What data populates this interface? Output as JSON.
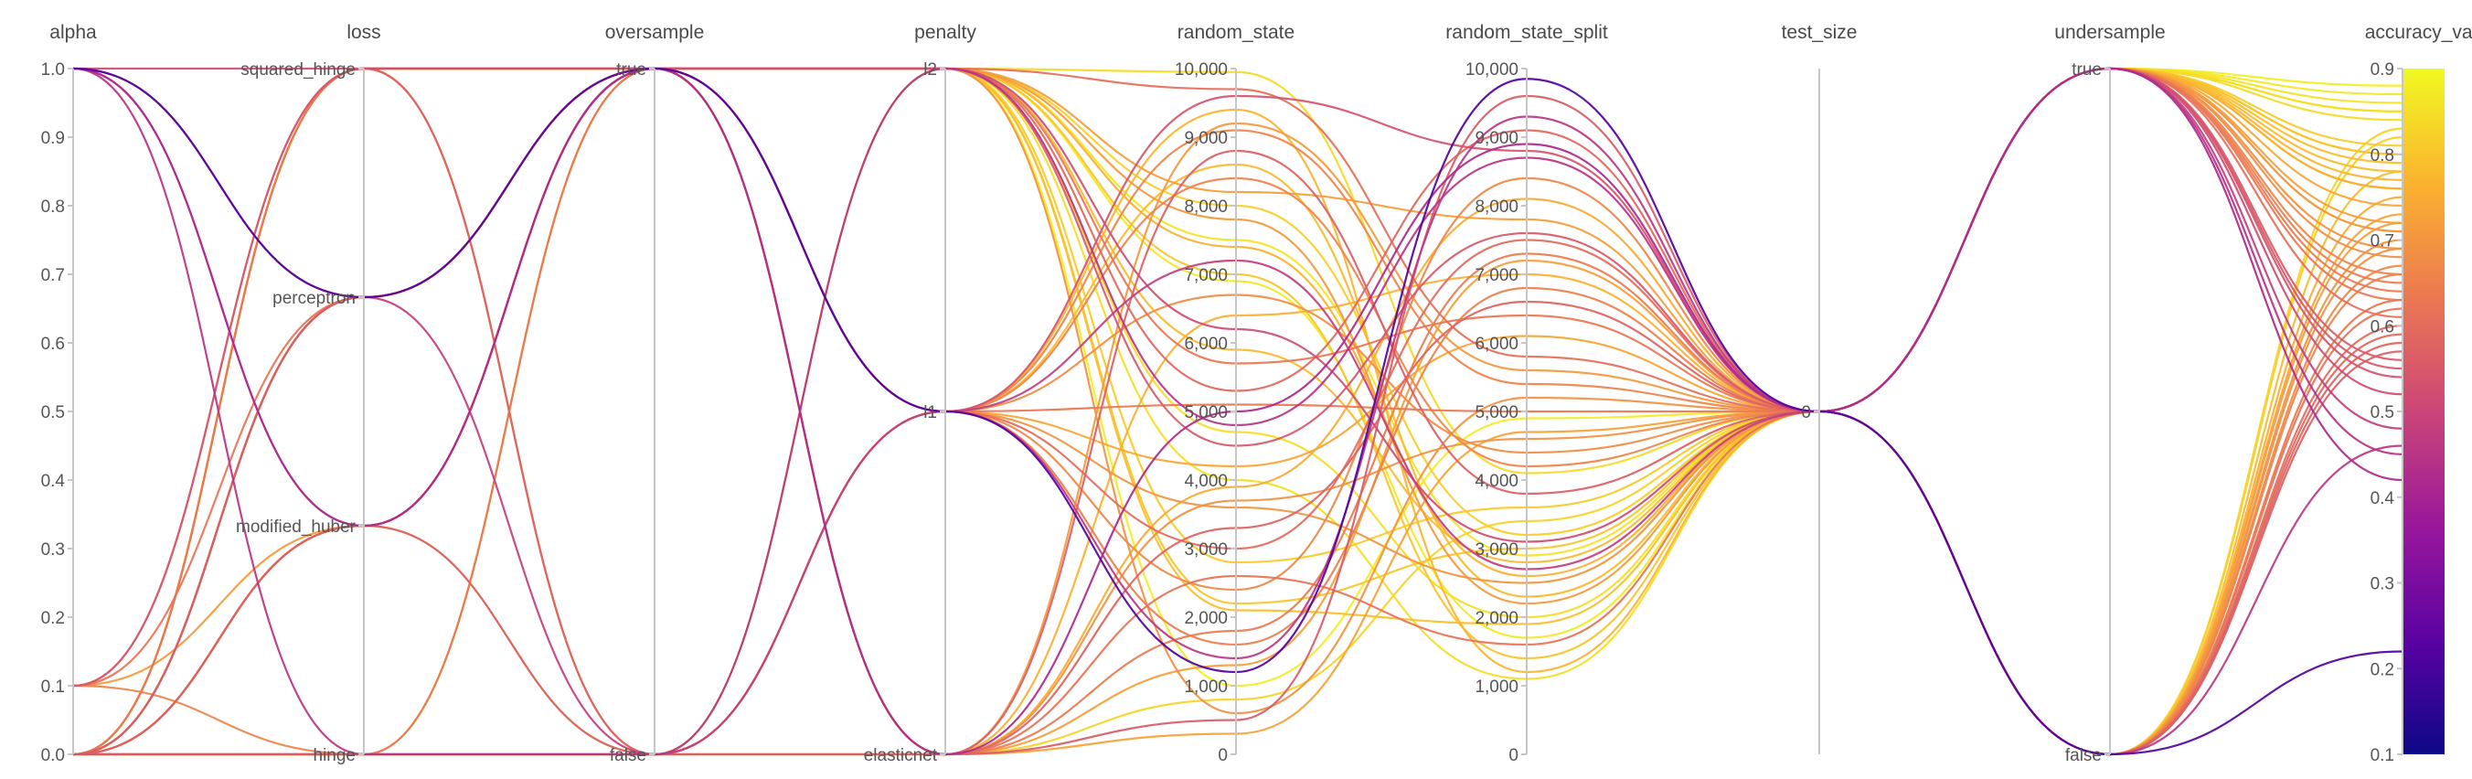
{
  "chart_data": {
    "type": "parallel_coordinates",
    "colorscale": {
      "name": "plasma",
      "stops": [
        "#0d0887",
        "#5b02a3",
        "#9a179b",
        "#cb4678",
        "#eb7852",
        "#fbb32f",
        "#f0f921"
      ],
      "range": [
        0.1,
        0.9
      ],
      "colorbar_ticks": [
        "0.1",
        "0.2",
        "0.3",
        "0.4",
        "0.5",
        "0.6",
        "0.7",
        "0.8",
        "0.9"
      ]
    },
    "axes": [
      {
        "key": "alpha",
        "label": "alpha",
        "type": "linear",
        "range": [
          0,
          1
        ],
        "ticks": [
          "0.0",
          "0.1",
          "0.2",
          "0.3",
          "0.4",
          "0.5",
          "0.6",
          "0.7",
          "0.8",
          "0.9",
          "1.0"
        ],
        "tick_side": "left"
      },
      {
        "key": "loss",
        "label": "loss",
        "type": "categorical",
        "categories": [
          "hinge",
          "modified_huber",
          "perceptron",
          "squared_hinge"
        ],
        "tick_side": "left"
      },
      {
        "key": "oversample",
        "label": "oversample",
        "type": "categorical",
        "categories": [
          "false",
          "true"
        ],
        "tick_side": "left"
      },
      {
        "key": "penalty",
        "label": "penalty",
        "type": "categorical",
        "categories": [
          "elasticnet",
          "l1",
          "l2"
        ],
        "tick_side": "left"
      },
      {
        "key": "random_state",
        "label": "random_state",
        "type": "linear",
        "range": [
          0,
          10000
        ],
        "ticks": [
          "0",
          "1,000",
          "2,000",
          "3,000",
          "4,000",
          "5,000",
          "6,000",
          "7,000",
          "8,000",
          "9,000",
          "10,000"
        ],
        "tick_side": "left"
      },
      {
        "key": "random_state_split",
        "label": "random_state_split",
        "type": "linear",
        "range": [
          0,
          10000
        ],
        "ticks": [
          "0",
          "1,000",
          "2,000",
          "3,000",
          "4,000",
          "5,000",
          "6,000",
          "7,000",
          "8,000",
          "9,000",
          "10,000"
        ],
        "tick_side": "left"
      },
      {
        "key": "test_size",
        "label": "test_size",
        "type": "categorical",
        "categories": [
          "0"
        ],
        "tick_side": "left"
      },
      {
        "key": "undersample",
        "label": "undersample",
        "type": "categorical",
        "categories": [
          "false",
          "true"
        ],
        "tick_side": "left"
      },
      {
        "key": "accuracy_val",
        "label": "accuracy_val",
        "type": "linear",
        "range": [
          0.1,
          0.9
        ],
        "ticks": [
          "0.1",
          "0.2",
          "0.3",
          "0.4",
          "0.5",
          "0.6",
          "0.7",
          "0.8",
          "0.9"
        ],
        "tick_side": "left",
        "colorbar": true
      }
    ],
    "runs": [
      {
        "alpha": 1.0,
        "loss": "perceptron",
        "oversample": "true",
        "penalty": "l1",
        "random_state": 1200,
        "random_state_split": 9850,
        "test_size": "0",
        "undersample": "false",
        "accuracy_val": 0.22
      },
      {
        "alpha": 1.0,
        "loss": "modified_huber",
        "oversample": "true",
        "penalty": "elasticnet",
        "random_state": 5000,
        "random_state_split": 8900,
        "test_size": "0",
        "undersample": "true",
        "accuracy_val": 0.42
      },
      {
        "alpha": 1.0,
        "loss": "hinge",
        "oversample": "false",
        "penalty": "l2",
        "random_state": 4800,
        "random_state_split": 8700,
        "test_size": "0",
        "undersample": "true",
        "accuracy_val": 0.45
      },
      {
        "alpha": 1.0,
        "loss": "squared_hinge",
        "oversample": "true",
        "penalty": "l2",
        "random_state": 6200,
        "random_state_split": 3100,
        "test_size": "0",
        "undersample": "true",
        "accuracy_val": 0.52
      },
      {
        "alpha": 1.0,
        "loss": "perceptron",
        "oversample": "false",
        "penalty": "l1",
        "random_state": 7200,
        "random_state_split": 2700,
        "test_size": "0",
        "undersample": "true",
        "accuracy_val": 0.48
      },
      {
        "alpha": 1.0,
        "loss": "modified_huber",
        "oversample": "true",
        "penalty": "l1",
        "random_state": 1400,
        "random_state_split": 9300,
        "test_size": "0",
        "undersample": "false",
        "accuracy_val": 0.46
      },
      {
        "alpha": 0.1,
        "loss": "squared_hinge",
        "oversample": "true",
        "penalty": "l2",
        "random_state": 4500,
        "random_state_split": 7600,
        "test_size": "0",
        "undersample": "true",
        "accuracy_val": 0.55
      },
      {
        "alpha": 0.1,
        "loss": "perceptron",
        "oversample": "true",
        "penalty": "elasticnet",
        "random_state": 2600,
        "random_state_split": 1600,
        "test_size": "0",
        "undersample": "false",
        "accuracy_val": 0.62
      },
      {
        "alpha": 0.1,
        "loss": "hinge",
        "oversample": "false",
        "penalty": "l1",
        "random_state": 9100,
        "random_state_split": 5400,
        "test_size": "0",
        "undersample": "true",
        "accuracy_val": 0.66
      },
      {
        "alpha": 0.1,
        "loss": "modified_huber",
        "oversample": "true",
        "penalty": "l2",
        "random_state": 7800,
        "random_state_split": 2200,
        "test_size": "0",
        "undersample": "true",
        "accuracy_val": 0.71
      },
      {
        "alpha": 0.1,
        "loss": "squared_hinge",
        "oversample": "false",
        "penalty": "elasticnet",
        "random_state": 3300,
        "random_state_split": 6600,
        "test_size": "0",
        "undersample": "false",
        "accuracy_val": 0.58
      },
      {
        "alpha": 0.0,
        "loss": "squared_hinge",
        "oversample": "true",
        "penalty": "l2",
        "random_state": 9950,
        "random_state_split": 4100,
        "test_size": "0",
        "undersample": "true",
        "accuracy_val": 0.84
      },
      {
        "alpha": 0.0,
        "loss": "squared_hinge",
        "oversample": "true",
        "penalty": "l1",
        "random_state": 8600,
        "random_state_split": 2300,
        "test_size": "0",
        "undersample": "false",
        "accuracy_val": 0.78
      },
      {
        "alpha": 0.0,
        "loss": "perceptron",
        "oversample": "true",
        "penalty": "l2",
        "random_state": 600,
        "random_state_split": 5200,
        "test_size": "0",
        "undersample": "true",
        "accuracy_val": 0.69
      },
      {
        "alpha": 0.0,
        "loss": "perceptron",
        "oversample": "true",
        "penalty": "elasticnet",
        "random_state": 3900,
        "random_state_split": 8100,
        "test_size": "0",
        "undersample": "false",
        "accuracy_val": 0.75
      },
      {
        "alpha": 0.0,
        "loss": "modified_huber",
        "oversample": "true",
        "penalty": "l2",
        "random_state": 2800,
        "random_state_split": 3600,
        "test_size": "0",
        "undersample": "true",
        "accuracy_val": 0.81
      },
      {
        "alpha": 0.0,
        "loss": "modified_huber",
        "oversample": "false",
        "penalty": "l1",
        "random_state": 9400,
        "random_state_split": 1200,
        "test_size": "0",
        "undersample": "true",
        "accuracy_val": 0.77
      },
      {
        "alpha": 0.0,
        "loss": "hinge",
        "oversample": "false",
        "penalty": "elasticnet",
        "random_state": 300,
        "random_state_split": 4700,
        "test_size": "0",
        "undersample": "false",
        "accuracy_val": 0.73
      },
      {
        "alpha": 0.0,
        "loss": "hinge",
        "oversample": "false",
        "penalty": "l2",
        "random_state": 7500,
        "random_state_split": 2900,
        "test_size": "0",
        "undersample": "true",
        "accuracy_val": 0.86
      },
      {
        "alpha": 0.0,
        "loss": "squared_hinge",
        "oversample": "true",
        "penalty": "elasticnet",
        "random_state": 1800,
        "random_state_split": 7300,
        "test_size": "0",
        "undersample": "true",
        "accuracy_val": 0.64
      },
      {
        "alpha": 0.0,
        "loss": "perceptron",
        "oversample": "true",
        "penalty": "l2",
        "random_state": 5300,
        "random_state_split": 9100,
        "test_size": "0",
        "undersample": "false",
        "accuracy_val": 0.59
      },
      {
        "alpha": 0.0,
        "loss": "modified_huber",
        "oversample": "true",
        "penalty": "l1",
        "random_state": 6700,
        "random_state_split": 4400,
        "test_size": "0",
        "undersample": "true",
        "accuracy_val": 0.68
      },
      {
        "alpha": 0.0,
        "loss": "squared_hinge",
        "oversample": "false",
        "penalty": "l2",
        "random_state": 8200,
        "random_state_split": 7800,
        "test_size": "0",
        "undersample": "false",
        "accuracy_val": 0.72
      },
      {
        "alpha": 0.0,
        "loss": "hinge",
        "oversample": "true",
        "penalty": "l2",
        "random_state": 2100,
        "random_state_split": 1900,
        "test_size": "0",
        "undersample": "true",
        "accuracy_val": 0.79
      },
      {
        "alpha": 0.0,
        "loss": "perceptron",
        "oversample": "true",
        "penalty": "l1",
        "random_state": 4200,
        "random_state_split": 6100,
        "test_size": "0",
        "undersample": "true",
        "accuracy_val": 0.74
      },
      {
        "alpha": 0.0,
        "loss": "squared_hinge",
        "oversample": "true",
        "penalty": "elasticnet",
        "random_state": 800,
        "random_state_split": 3400,
        "test_size": "0",
        "undersample": "false",
        "accuracy_val": 0.83
      },
      {
        "alpha": 0.0,
        "loss": "modified_huber",
        "oversample": "true",
        "penalty": "l2",
        "random_state": 9700,
        "random_state_split": 5800,
        "test_size": "0",
        "undersample": "true",
        "accuracy_val": 0.61
      },
      {
        "alpha": 0.0,
        "loss": "hinge",
        "oversample": "false",
        "penalty": "l1",
        "random_state": 3600,
        "random_state_split": 2500,
        "test_size": "0",
        "undersample": "false",
        "accuracy_val": 0.7
      },
      {
        "alpha": 0.0,
        "loss": "perceptron",
        "oversample": "true",
        "penalty": "elasticnet",
        "random_state": 6400,
        "random_state_split": 7000,
        "test_size": "0",
        "undersample": "true",
        "accuracy_val": 0.76
      },
      {
        "alpha": 0.0,
        "loss": "squared_hinge",
        "oversample": "true",
        "penalty": "l2",
        "random_state": 1000,
        "random_state_split": 4900,
        "test_size": "0",
        "undersample": "true",
        "accuracy_val": 0.88
      },
      {
        "alpha": 0.0,
        "loss": "modified_huber",
        "oversample": "false",
        "penalty": "elasticnet",
        "random_state": 8800,
        "random_state_split": 3800,
        "test_size": "0",
        "undersample": "false",
        "accuracy_val": 0.57
      },
      {
        "alpha": 0.0,
        "loss": "hinge",
        "oversample": "true",
        "penalty": "l2",
        "random_state": 5700,
        "random_state_split": 6400,
        "test_size": "0",
        "undersample": "true",
        "accuracy_val": 0.63
      },
      {
        "alpha": 0.0,
        "loss": "perceptron",
        "oversample": "true",
        "penalty": "l2",
        "random_state": 7000,
        "random_state_split": 1400,
        "test_size": "0",
        "undersample": "true",
        "accuracy_val": 0.8
      },
      {
        "alpha": 0.0,
        "loss": "squared_hinge",
        "oversample": "true",
        "penalty": "l1",
        "random_state": 2400,
        "random_state_split": 8400,
        "test_size": "0",
        "undersample": "false",
        "accuracy_val": 0.67
      },
      {
        "alpha": 0.0,
        "loss": "modified_huber",
        "oversample": "true",
        "penalty": "l2",
        "random_state": 4700,
        "random_state_split": 2000,
        "test_size": "0",
        "undersample": "true",
        "accuracy_val": 0.85
      },
      {
        "alpha": 0.0,
        "loss": "hinge",
        "oversample": "false",
        "penalty": "elasticnet",
        "random_state": 9200,
        "random_state_split": 5600,
        "test_size": "0",
        "undersample": "true",
        "accuracy_val": 0.71
      },
      {
        "alpha": 0.0,
        "loss": "perceptron",
        "oversample": "true",
        "penalty": "l1",
        "random_state": 3000,
        "random_state_split": 7500,
        "test_size": "0",
        "undersample": "false",
        "accuracy_val": 0.6
      },
      {
        "alpha": 0.0,
        "loss": "squared_hinge",
        "oversample": "true",
        "penalty": "l2",
        "random_state": 5900,
        "random_state_split": 2800,
        "test_size": "0",
        "undersample": "true",
        "accuracy_val": 0.78
      },
      {
        "alpha": 0.0,
        "loss": "modified_huber",
        "oversample": "true",
        "penalty": "l1",
        "random_state": 1600,
        "random_state_split": 6800,
        "test_size": "0",
        "undersample": "true",
        "accuracy_val": 0.65
      },
      {
        "alpha": 0.0,
        "loss": "hinge",
        "oversample": "false",
        "penalty": "l2",
        "random_state": 8000,
        "random_state_split": 3200,
        "test_size": "0",
        "undersample": "false",
        "accuracy_val": 0.82
      },
      {
        "alpha": 0.0,
        "loss": "perceptron",
        "oversample": "true",
        "penalty": "elasticnet",
        "random_state": 500,
        "random_state_split": 9600,
        "test_size": "0",
        "undersample": "true",
        "accuracy_val": 0.56
      },
      {
        "alpha": 0.0,
        "loss": "squared_hinge",
        "oversample": "true",
        "penalty": "l2",
        "random_state": 6900,
        "random_state_split": 1700,
        "test_size": "0",
        "undersample": "true",
        "accuracy_val": 0.87
      },
      {
        "alpha": 0.0,
        "loss": "modified_huber",
        "oversample": "true",
        "penalty": "elasticnet",
        "random_state": 3700,
        "random_state_split": 4600,
        "test_size": "0",
        "undersample": "false",
        "accuracy_val": 0.69
      },
      {
        "alpha": 0.0,
        "loss": "hinge",
        "oversample": "false",
        "penalty": "l1",
        "random_state": 9600,
        "random_state_split": 8800,
        "test_size": "0",
        "undersample": "true",
        "accuracy_val": 0.54
      },
      {
        "alpha": 0.0,
        "loss": "perceptron",
        "oversample": "true",
        "penalty": "l2",
        "random_state": 2200,
        "random_state_split": 3000,
        "test_size": "0",
        "undersample": "true",
        "accuracy_val": 0.8
      },
      {
        "alpha": 0.0,
        "loss": "squared_hinge",
        "oversample": "false",
        "penalty": "l1",
        "random_state": 5100,
        "random_state_split": 5000,
        "test_size": "0",
        "undersample": "false",
        "accuracy_val": 0.63
      },
      {
        "alpha": 0.0,
        "loss": "modified_huber",
        "oversample": "true",
        "penalty": "l2",
        "random_state": 7400,
        "random_state_split": 2600,
        "test_size": "0",
        "undersample": "true",
        "accuracy_val": 0.76
      },
      {
        "alpha": 0.0,
        "loss": "hinge",
        "oversample": "true",
        "penalty": "elasticnet",
        "random_state": 1300,
        "random_state_split": 7200,
        "test_size": "0",
        "undersample": "true",
        "accuracy_val": 0.72
      },
      {
        "alpha": 0.0,
        "loss": "perceptron",
        "oversample": "true",
        "penalty": "l1",
        "random_state": 8400,
        "random_state_split": 4200,
        "test_size": "0",
        "undersample": "false",
        "accuracy_val": 0.66
      },
      {
        "alpha": 0.0,
        "loss": "squared_hinge",
        "oversample": "true",
        "penalty": "l2",
        "random_state": 4000,
        "random_state_split": 1100,
        "test_size": "0",
        "undersample": "true",
        "accuracy_val": 0.85
      }
    ]
  }
}
